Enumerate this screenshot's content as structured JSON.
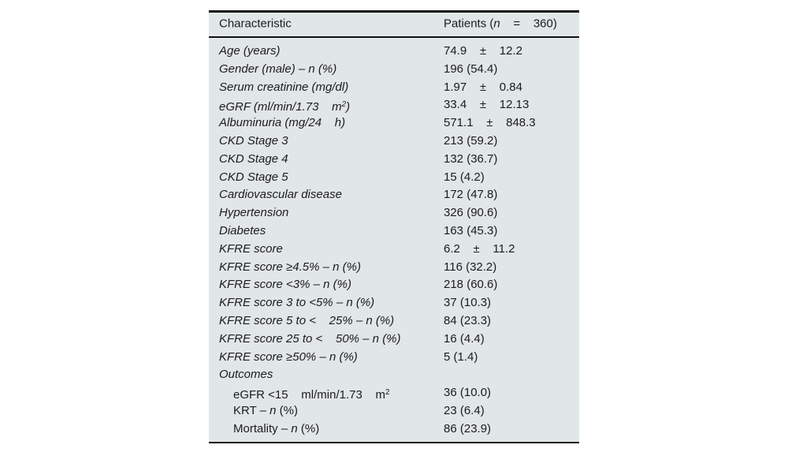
{
  "table": {
    "colors": {
      "page": "#ffffff",
      "background": "#e1e6e7",
      "rule": "#111111",
      "text": "#1c1c1c"
    },
    "header": {
      "characteristic": "Characteristic",
      "patients_parts": [
        {
          "t": "Patients ("
        },
        {
          "t": "n",
          "i": true
        },
        {
          "t": "    =    360)"
        }
      ]
    },
    "rows": [
      {
        "label": [
          {
            "t": "Age (years)",
            "i": true
          }
        ],
        "value": "74.9    ±    12.2"
      },
      {
        "label": [
          {
            "t": "Gender (male) – n (%)",
            "i": true
          }
        ],
        "value": "196 (54.4)"
      },
      {
        "label": [
          {
            "t": "Serum creatinine (mg/dl)",
            "i": true
          }
        ],
        "value": "1.97    ±    0.84"
      },
      {
        "label": [
          {
            "t": "eGRF (ml/min/1.73    m",
            "i": true
          },
          {
            "t": "2",
            "i": true,
            "s": true
          },
          {
            "t": ")",
            "i": true
          }
        ],
        "value": "33.4    ±    12.13"
      },
      {
        "label": [
          {
            "t": "Albuminuria (mg/24    h)",
            "i": true
          }
        ],
        "value": "571.1    ±    848.3"
      },
      {
        "label": [
          {
            "t": "CKD Stage 3",
            "i": true
          }
        ],
        "value": "213 (59.2)"
      },
      {
        "label": [
          {
            "t": "CKD Stage 4",
            "i": true
          }
        ],
        "value": "132 (36.7)"
      },
      {
        "label": [
          {
            "t": "CKD Stage 5",
            "i": true
          }
        ],
        "value": "15 (4.2)"
      },
      {
        "label": [
          {
            "t": "Cardiovascular disease",
            "i": true
          }
        ],
        "value": "172 (47.8)"
      },
      {
        "label": [
          {
            "t": "Hypertension",
            "i": true
          }
        ],
        "value": "326 (90.6)"
      },
      {
        "label": [
          {
            "t": "Diabetes",
            "i": true
          }
        ],
        "value": "163 (45.3)"
      },
      {
        "label": [
          {
            "t": "KFRE score",
            "i": true
          }
        ],
        "value": "6.2    ±    11.2"
      },
      {
        "label": [
          {
            "t": "KFRE score ≥4.5% – n (%)",
            "i": true
          }
        ],
        "value": "116 (32.2)"
      },
      {
        "label": [
          {
            "t": "KFRE score <3% – n (%)",
            "i": true
          }
        ],
        "value": "218 (60.6)"
      },
      {
        "label": [
          {
            "t": "KFRE score 3 to <5% – n (%)",
            "i": true
          }
        ],
        "value": "37 (10.3)"
      },
      {
        "label": [
          {
            "t": "KFRE score 5 to <    25% – n (%)",
            "i": true
          }
        ],
        "value": "84 (23.3)"
      },
      {
        "label": [
          {
            "t": "KFRE score 25 to <    50% – n (%)",
            "i": true
          }
        ],
        "value": "16 (4.4)"
      },
      {
        "label": [
          {
            "t": "KFRE score ≥50% – n (%)",
            "i": true
          }
        ],
        "value": "5 (1.4)"
      },
      {
        "label": [
          {
            "t": "Outcomes",
            "i": true
          }
        ],
        "value": ""
      },
      {
        "indent": true,
        "label": [
          {
            "t": "eGFR <15    ml/min/1.73    m"
          },
          {
            "t": "2",
            "s": true
          }
        ],
        "value": "36 (10.0)"
      },
      {
        "indent": true,
        "label": [
          {
            "t": "KRT – "
          },
          {
            "t": "n",
            "i": true
          },
          {
            "t": " (%)"
          }
        ],
        "value": "23 (6.4)"
      },
      {
        "indent": true,
        "label": [
          {
            "t": "Mortality – "
          },
          {
            "t": "n",
            "i": true
          },
          {
            "t": " (%)"
          }
        ],
        "value": "86 (23.9)"
      }
    ]
  }
}
